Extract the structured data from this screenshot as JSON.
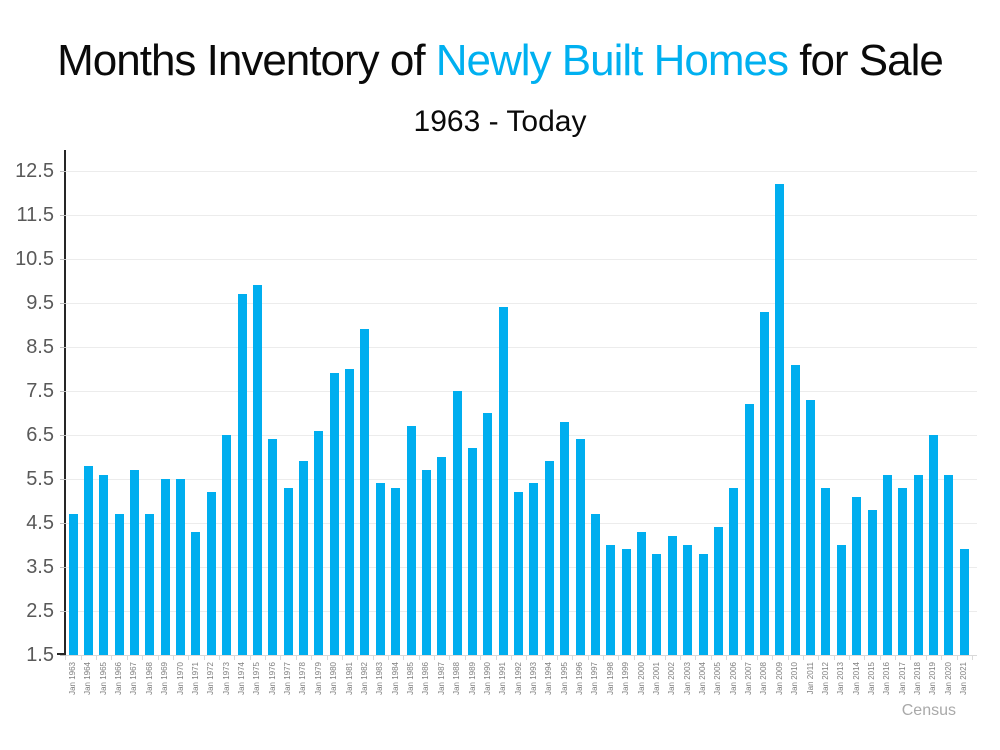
{
  "header": {
    "title_prefix": "Months Inventory of ",
    "title_highlight": "Newly Built Homes",
    "title_suffix": " for Sale",
    "subtitle": "1963 - Today",
    "highlight_color": "#00b0f0"
  },
  "source": {
    "label": "Census"
  },
  "colors": {
    "bar": "#00aeef",
    "axis": "#262626",
    "gridline": "#ececec",
    "y_label": "#595959",
    "x_label": "#7f7f7f",
    "title_text": "#0a0a0a",
    "source_text": "#a9a9a9"
  },
  "chart_data": {
    "type": "bar",
    "title": "Months Inventory of Newly Built Homes for Sale",
    "subtitle": "1963 - Today",
    "xlabel": "",
    "ylabel": "",
    "grid": true,
    "legend": false,
    "ylim": [
      1.5,
      13.0
    ],
    "yticks": [
      1.5,
      2.5,
      3.5,
      4.5,
      5.5,
      6.5,
      7.5,
      8.5,
      9.5,
      10.5,
      11.5,
      12.5
    ],
    "categories": [
      "Jan 1963",
      "Jan 1964",
      "Jan 1965",
      "Jan 1966",
      "Jan 1967",
      "Jan 1968",
      "Jan 1969",
      "Jan 1970",
      "Jan 1971",
      "Jan 1972",
      "Jan 1973",
      "Jan 1974",
      "Jan 1975",
      "Jan 1976",
      "Jan 1977",
      "Jan 1978",
      "Jan 1979",
      "Jan 1980",
      "Jan 1981",
      "Jan 1982",
      "Jan 1983",
      "Jan 1984",
      "Jan 1985",
      "Jan 1986",
      "Jan 1987",
      "Jan 1988",
      "Jan 1989",
      "Jan 1990",
      "Jan 1991",
      "Jan 1992",
      "Jan 1993",
      "Jan 1994",
      "Jan 1995",
      "Jan 1996",
      "Jan 1997",
      "Jan 1998",
      "Jan 1999",
      "Jan 2000",
      "Jan 2001",
      "Jan 2002",
      "Jan 2003",
      "Jan 2004",
      "Jan 2005",
      "Jan 2006",
      "Jan 2007",
      "Jan 2008",
      "Jan 2009",
      "Jan 2010",
      "Jan 2011",
      "Jan 2012",
      "Jan 2013",
      "Jan 2014",
      "Jan 2015",
      "Jan 2016",
      "Jan 2017",
      "Jan 2018",
      "Jan 2019",
      "Jan 2020",
      "Jan 2021"
    ],
    "values": [
      4.7,
      5.8,
      5.6,
      4.7,
      5.7,
      4.7,
      5.5,
      5.5,
      4.3,
      5.2,
      6.5,
      9.7,
      9.9,
      6.4,
      5.3,
      5.9,
      6.6,
      7.9,
      8.0,
      8.9,
      5.4,
      5.3,
      6.7,
      5.7,
      6.0,
      7.5,
      6.2,
      7.0,
      9.4,
      5.2,
      5.4,
      5.9,
      6.8,
      6.4,
      4.7,
      4.0,
      3.9,
      4.3,
      3.8,
      4.2,
      4.0,
      3.8,
      4.4,
      5.3,
      7.2,
      9.3,
      12.2,
      8.1,
      7.3,
      5.3,
      4.0,
      5.1,
      4.8,
      5.6,
      5.3,
      5.6,
      6.5,
      5.6,
      3.9
    ]
  }
}
